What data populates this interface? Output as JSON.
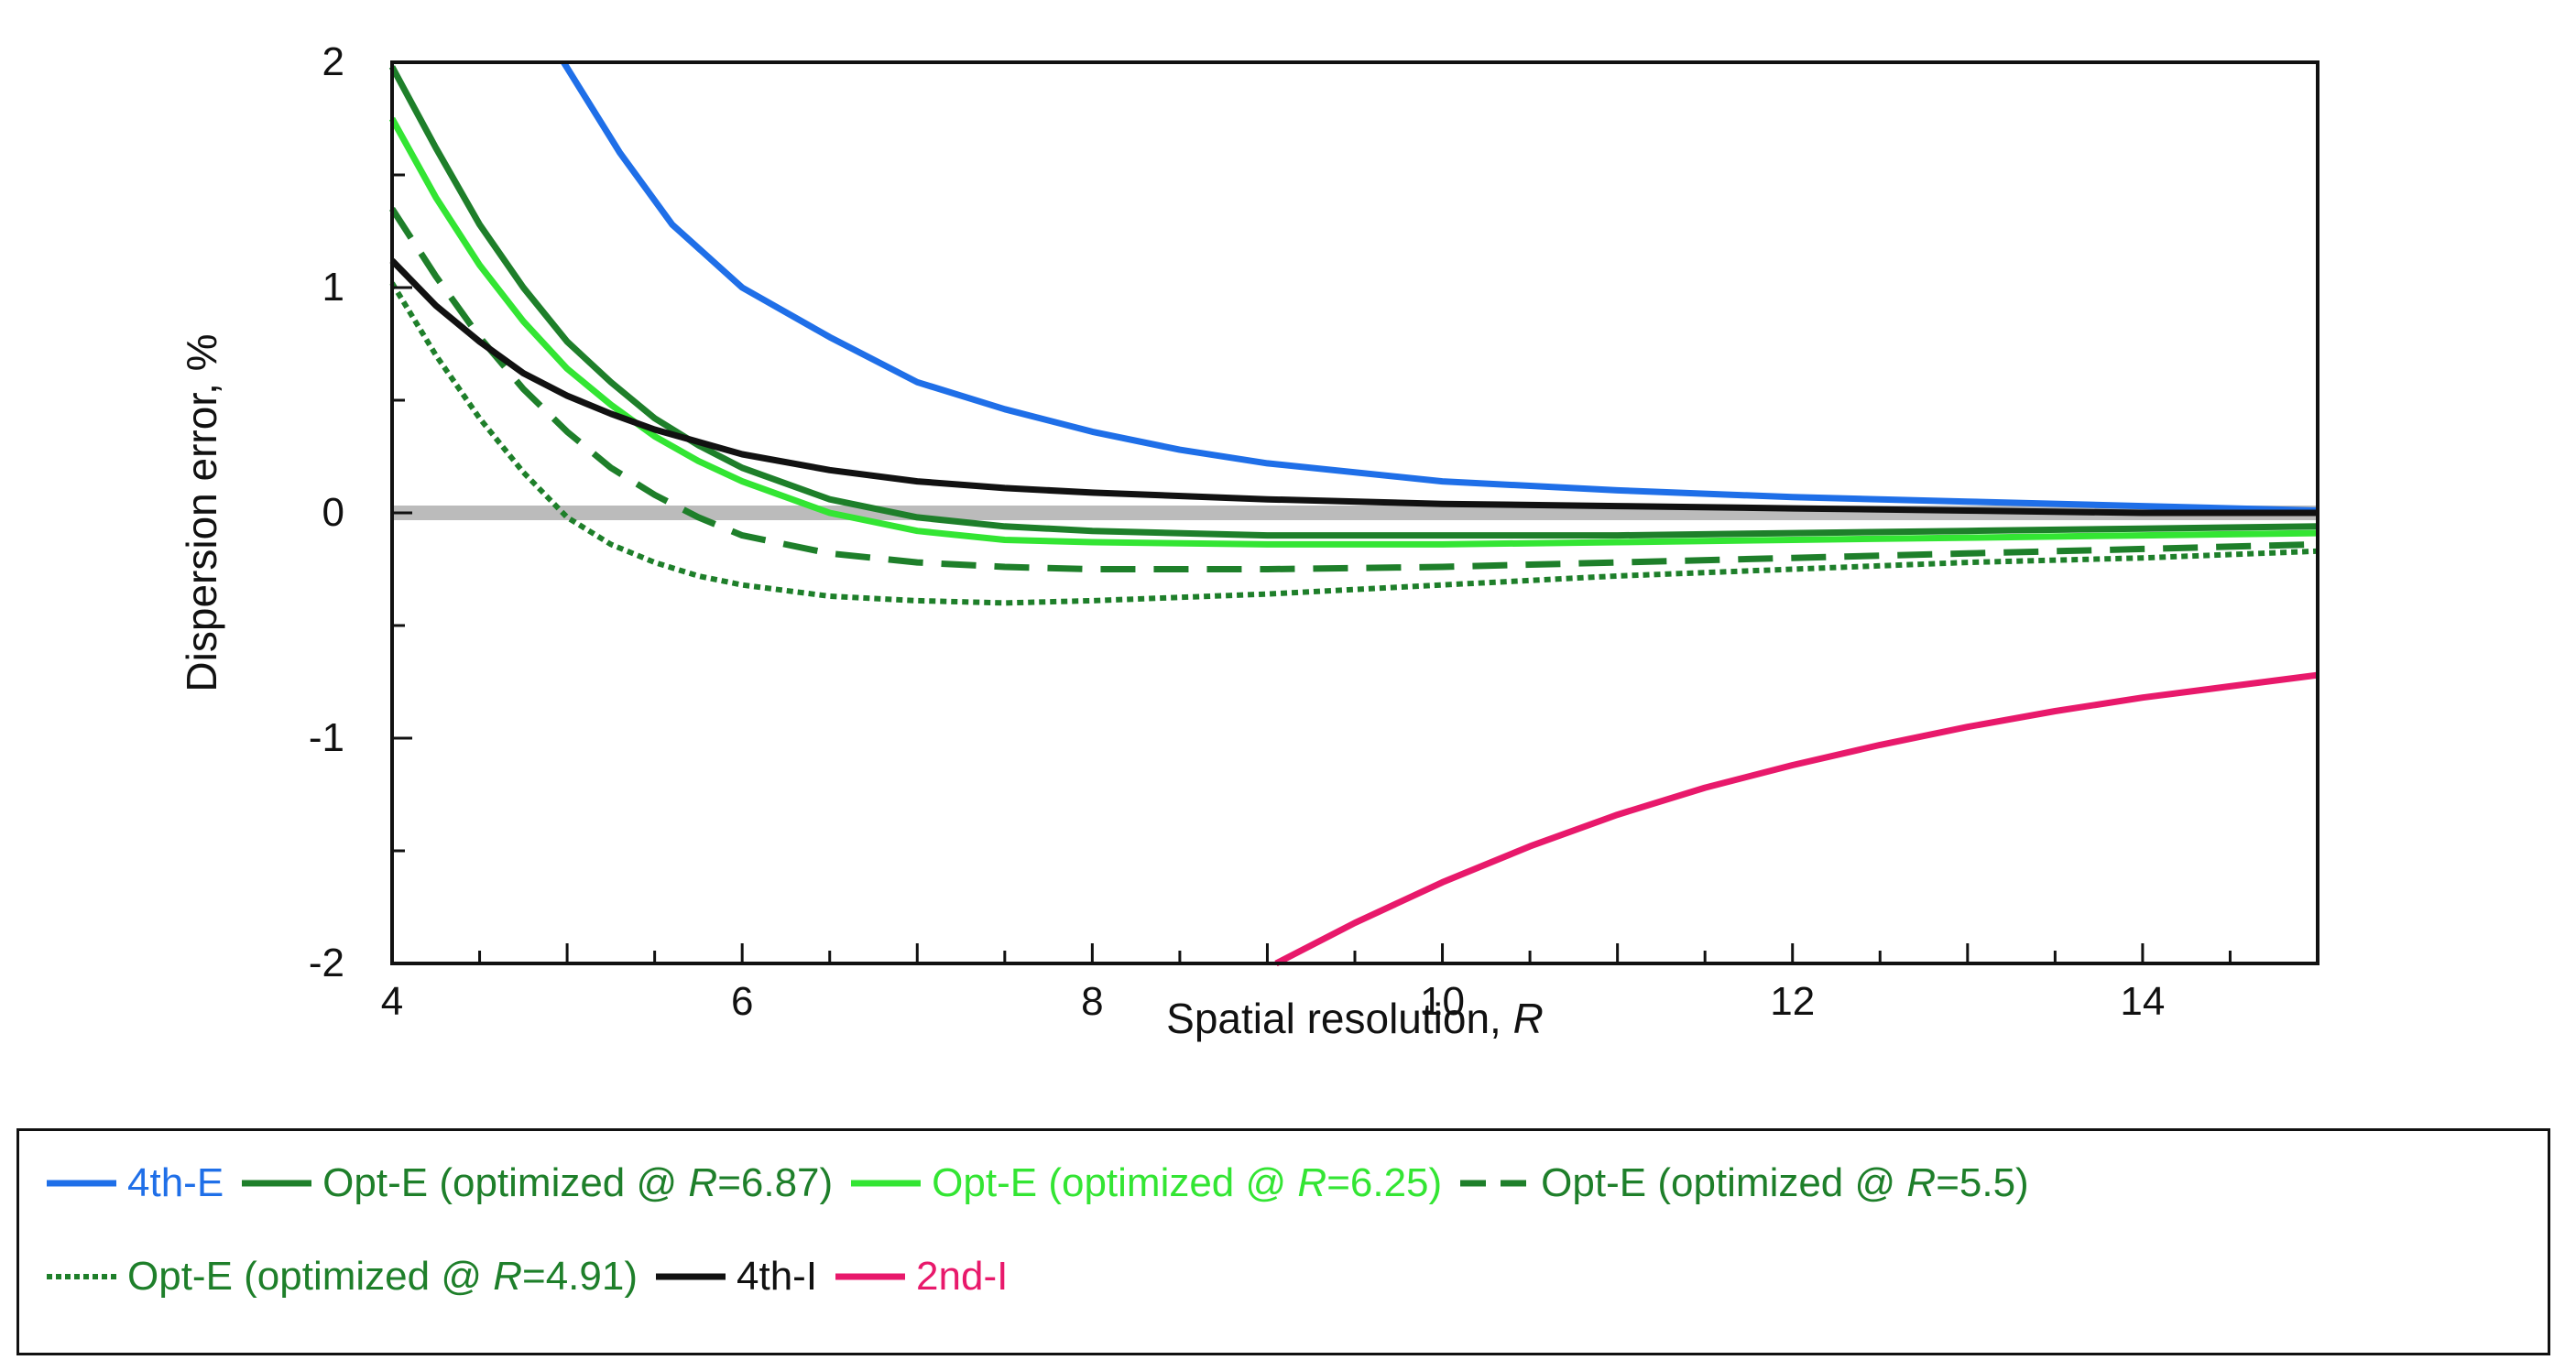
{
  "chart_data": {
    "type": "line",
    "title": "",
    "xlabel": "Spatial resolution, R",
    "ylabel": "Dispersion error, %",
    "xlim": [
      4,
      15
    ],
    "ylim": [
      -2,
      2
    ],
    "x_ticks": [
      4,
      6,
      8,
      10,
      12,
      14
    ],
    "y_ticks": [
      2,
      1,
      0,
      -1,
      -2
    ],
    "grid": false,
    "zero_line": true,
    "legend_position": "bottom",
    "series": [
      {
        "name": "4th-E",
        "color": "#1f6fe8",
        "style": "solid",
        "x": [
          4.98,
          5.3,
          5.6,
          6,
          6.5,
          7,
          7.5,
          8,
          8.5,
          9,
          10,
          11,
          12,
          13,
          14,
          15
        ],
        "y": [
          2,
          1.6,
          1.28,
          1.0,
          0.78,
          0.58,
          0.46,
          0.36,
          0.28,
          0.22,
          0.14,
          0.1,
          0.07,
          0.05,
          0.03,
          0.01
        ]
      },
      {
        "name": "Opt-E (optimized @ R=6.87)",
        "color": "#1e7f2a",
        "style": "solid",
        "x": [
          4,
          4.25,
          4.5,
          4.75,
          5,
          5.25,
          5.5,
          5.75,
          6,
          6.5,
          7,
          7.5,
          8,
          9,
          10,
          11,
          12,
          13,
          14,
          15
        ],
        "y": [
          1.98,
          1.62,
          1.28,
          1.0,
          0.76,
          0.58,
          0.42,
          0.3,
          0.2,
          0.06,
          -0.02,
          -0.06,
          -0.08,
          -0.1,
          -0.1,
          -0.1,
          -0.09,
          -0.08,
          -0.07,
          -0.06
        ]
      },
      {
        "name": "Opt-E (optimized @ R=6.25)",
        "color": "#33e533",
        "style": "solid",
        "x": [
          4,
          4.25,
          4.5,
          4.75,
          5,
          5.25,
          5.5,
          5.75,
          6,
          6.5,
          7,
          7.5,
          8,
          9,
          10,
          11,
          12,
          13,
          14,
          15
        ],
        "y": [
          1.75,
          1.4,
          1.1,
          0.85,
          0.64,
          0.48,
          0.34,
          0.23,
          0.14,
          0.0,
          -0.08,
          -0.12,
          -0.13,
          -0.14,
          -0.14,
          -0.13,
          -0.12,
          -0.11,
          -0.1,
          -0.09
        ]
      },
      {
        "name": "Opt-E (optimized @ R=5.5)",
        "color": "#1e7f2a",
        "style": "dashed",
        "x": [
          4,
          4.25,
          4.5,
          4.75,
          5,
          5.25,
          5.5,
          5.75,
          6,
          6.5,
          7,
          7.5,
          8,
          9,
          10,
          11,
          12,
          13,
          14,
          15
        ],
        "y": [
          1.35,
          1.05,
          0.78,
          0.55,
          0.36,
          0.2,
          0.08,
          -0.02,
          -0.1,
          -0.18,
          -0.22,
          -0.24,
          -0.25,
          -0.25,
          -0.24,
          -0.22,
          -0.2,
          -0.18,
          -0.16,
          -0.14
        ]
      },
      {
        "name": "Opt-E (optimized @ R=4.91)",
        "color": "#1e7f2a",
        "style": "dotted",
        "x": [
          4,
          4.25,
          4.5,
          4.75,
          5,
          5.25,
          5.5,
          5.75,
          6,
          6.5,
          7,
          7.5,
          8,
          9,
          10,
          11,
          12,
          13,
          14,
          15
        ],
        "y": [
          1.02,
          0.7,
          0.42,
          0.18,
          -0.02,
          -0.14,
          -0.22,
          -0.28,
          -0.32,
          -0.37,
          -0.39,
          -0.4,
          -0.39,
          -0.36,
          -0.32,
          -0.28,
          -0.25,
          -0.22,
          -0.2,
          -0.17
        ]
      },
      {
        "name": "4th-I",
        "color": "#111111",
        "style": "solid",
        "x": [
          4,
          4.25,
          4.5,
          4.75,
          5,
          5.25,
          5.5,
          6,
          6.5,
          7,
          7.5,
          8,
          9,
          10,
          11,
          12,
          13,
          14,
          15
        ],
        "y": [
          1.12,
          0.92,
          0.76,
          0.62,
          0.52,
          0.44,
          0.37,
          0.26,
          0.19,
          0.14,
          0.11,
          0.09,
          0.06,
          0.04,
          0.03,
          0.02,
          0.01,
          0.0,
          0.0
        ]
      },
      {
        "name": "2nd-I",
        "color": "#e8196b",
        "style": "solid",
        "x": [
          9.05,
          9.5,
          10,
          10.5,
          11,
          11.5,
          12,
          12.5,
          13,
          13.5,
          14,
          14.5,
          15
        ],
        "y": [
          -2.0,
          -1.82,
          -1.64,
          -1.48,
          -1.34,
          -1.22,
          -1.12,
          -1.03,
          -0.95,
          -0.88,
          -0.82,
          -0.77,
          -0.72
        ]
      }
    ]
  },
  "legend": {
    "row1": [
      {
        "series": 0,
        "prefix": "4th-E",
        "italic": "",
        "suffix": "",
        "color": "#1f6fe8",
        "style": "solid",
        "text_color": "#1f6fe8"
      },
      {
        "series": 1,
        "prefix": "Opt-E (optimized @ ",
        "italic": "R",
        "suffix": "=6.87)",
        "color": "#1e7f2a",
        "style": "solid",
        "text_color": "#1e7f2a"
      },
      {
        "series": 2,
        "prefix": "Opt-E (optimized @ ",
        "italic": "R",
        "suffix": "=6.25)",
        "color": "#33e533",
        "style": "solid",
        "text_color": "#33e533"
      },
      {
        "series": 3,
        "prefix": "Opt-E (optimized @ ",
        "italic": "R",
        "suffix": "=5.5)",
        "color": "#1e7f2a",
        "style": "dashed",
        "text_color": "#1e7f2a"
      }
    ],
    "row2": [
      {
        "series": 4,
        "prefix": "Opt-E (optimized @ ",
        "italic": "R",
        "suffix": "=4.91)",
        "color": "#1e7f2a",
        "style": "dotted",
        "text_color": "#1e7f2a"
      },
      {
        "series": 5,
        "prefix": "4th-I",
        "italic": "",
        "suffix": "",
        "color": "#111111",
        "style": "solid",
        "text_color": "#111111"
      },
      {
        "series": 6,
        "prefix": "2nd-I",
        "italic": "",
        "suffix": "",
        "color": "#e8196b",
        "style": "solid",
        "text_color": "#e8196b"
      }
    ]
  },
  "axis_titles": {
    "x_prefix": "Spatial resolution, ",
    "x_italic": "R",
    "y": "Dispersion error, %"
  },
  "colors": {
    "zero_line": "#bbbbbb",
    "axis": "#111111"
  }
}
